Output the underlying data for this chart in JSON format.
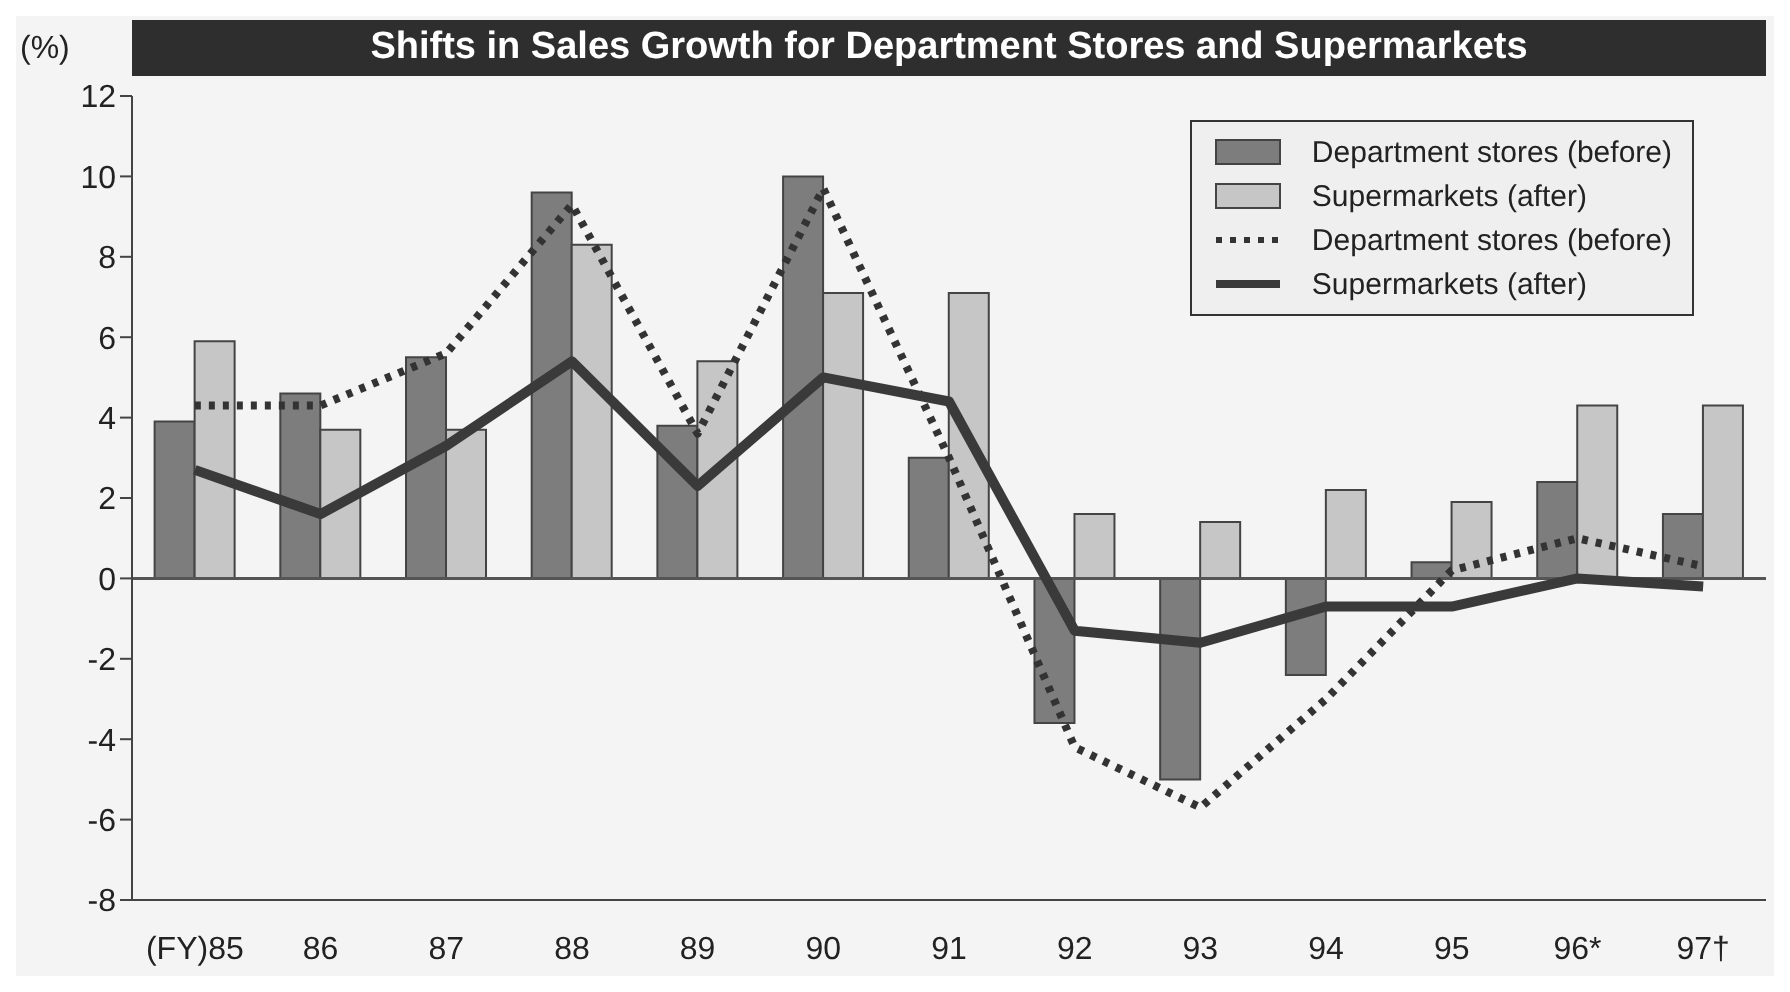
{
  "chart_data": {
    "type": "bar",
    "title": "Shifts in Sales Growth for Department Stores and Supermarkets",
    "ylabel": "(%)",
    "categories": [
      "(FY)85",
      "86",
      "87",
      "88",
      "89",
      "90",
      "91",
      "92",
      "93",
      "94",
      "95",
      "96*",
      "97†"
    ],
    "series": [
      {
        "name": "Department stores (before)",
        "color": "#7d7d7d",
        "values": [
          3.9,
          4.6,
          5.5,
          9.6,
          3.8,
          10.0,
          3.0,
          -3.6,
          -5.0,
          -2.4,
          0.4,
          2.4,
          1.6
        ]
      },
      {
        "name": "Supermarkets (after)",
        "color": "#c6c6c6",
        "values": [
          5.9,
          3.7,
          3.7,
          8.3,
          5.4,
          7.1,
          7.1,
          1.6,
          1.4,
          2.2,
          1.9,
          4.3,
          4.3
        ]
      },
      {
        "name": "Department stores (before)",
        "type": "line",
        "line_style": "dotted",
        "color": "#333333",
        "values": [
          4.3,
          4.3,
          5.6,
          9.3,
          3.6,
          9.7,
          3.0,
          -4.2,
          -5.7,
          -3.0,
          0.2,
          1.0,
          0.3
        ]
      },
      {
        "name": "Supermarkets (after)",
        "type": "line",
        "line_style": "solid",
        "color": "#3a3a3a",
        "values": [
          2.7,
          1.6,
          3.3,
          5.4,
          2.3,
          5.0,
          4.4,
          -1.3,
          -1.6,
          -0.7,
          -0.7,
          0.0,
          -0.2
        ]
      }
    ],
    "ylim": [
      -8,
      12
    ],
    "yticks": [
      -8,
      -6,
      -4,
      -2,
      0,
      2,
      4,
      6,
      8,
      10,
      12
    ],
    "ref_lines": [
      {
        "axis": "y",
        "value": 0,
        "color": "#555555"
      }
    ],
    "legend": "top right",
    "grid": false,
    "marker": "none"
  }
}
